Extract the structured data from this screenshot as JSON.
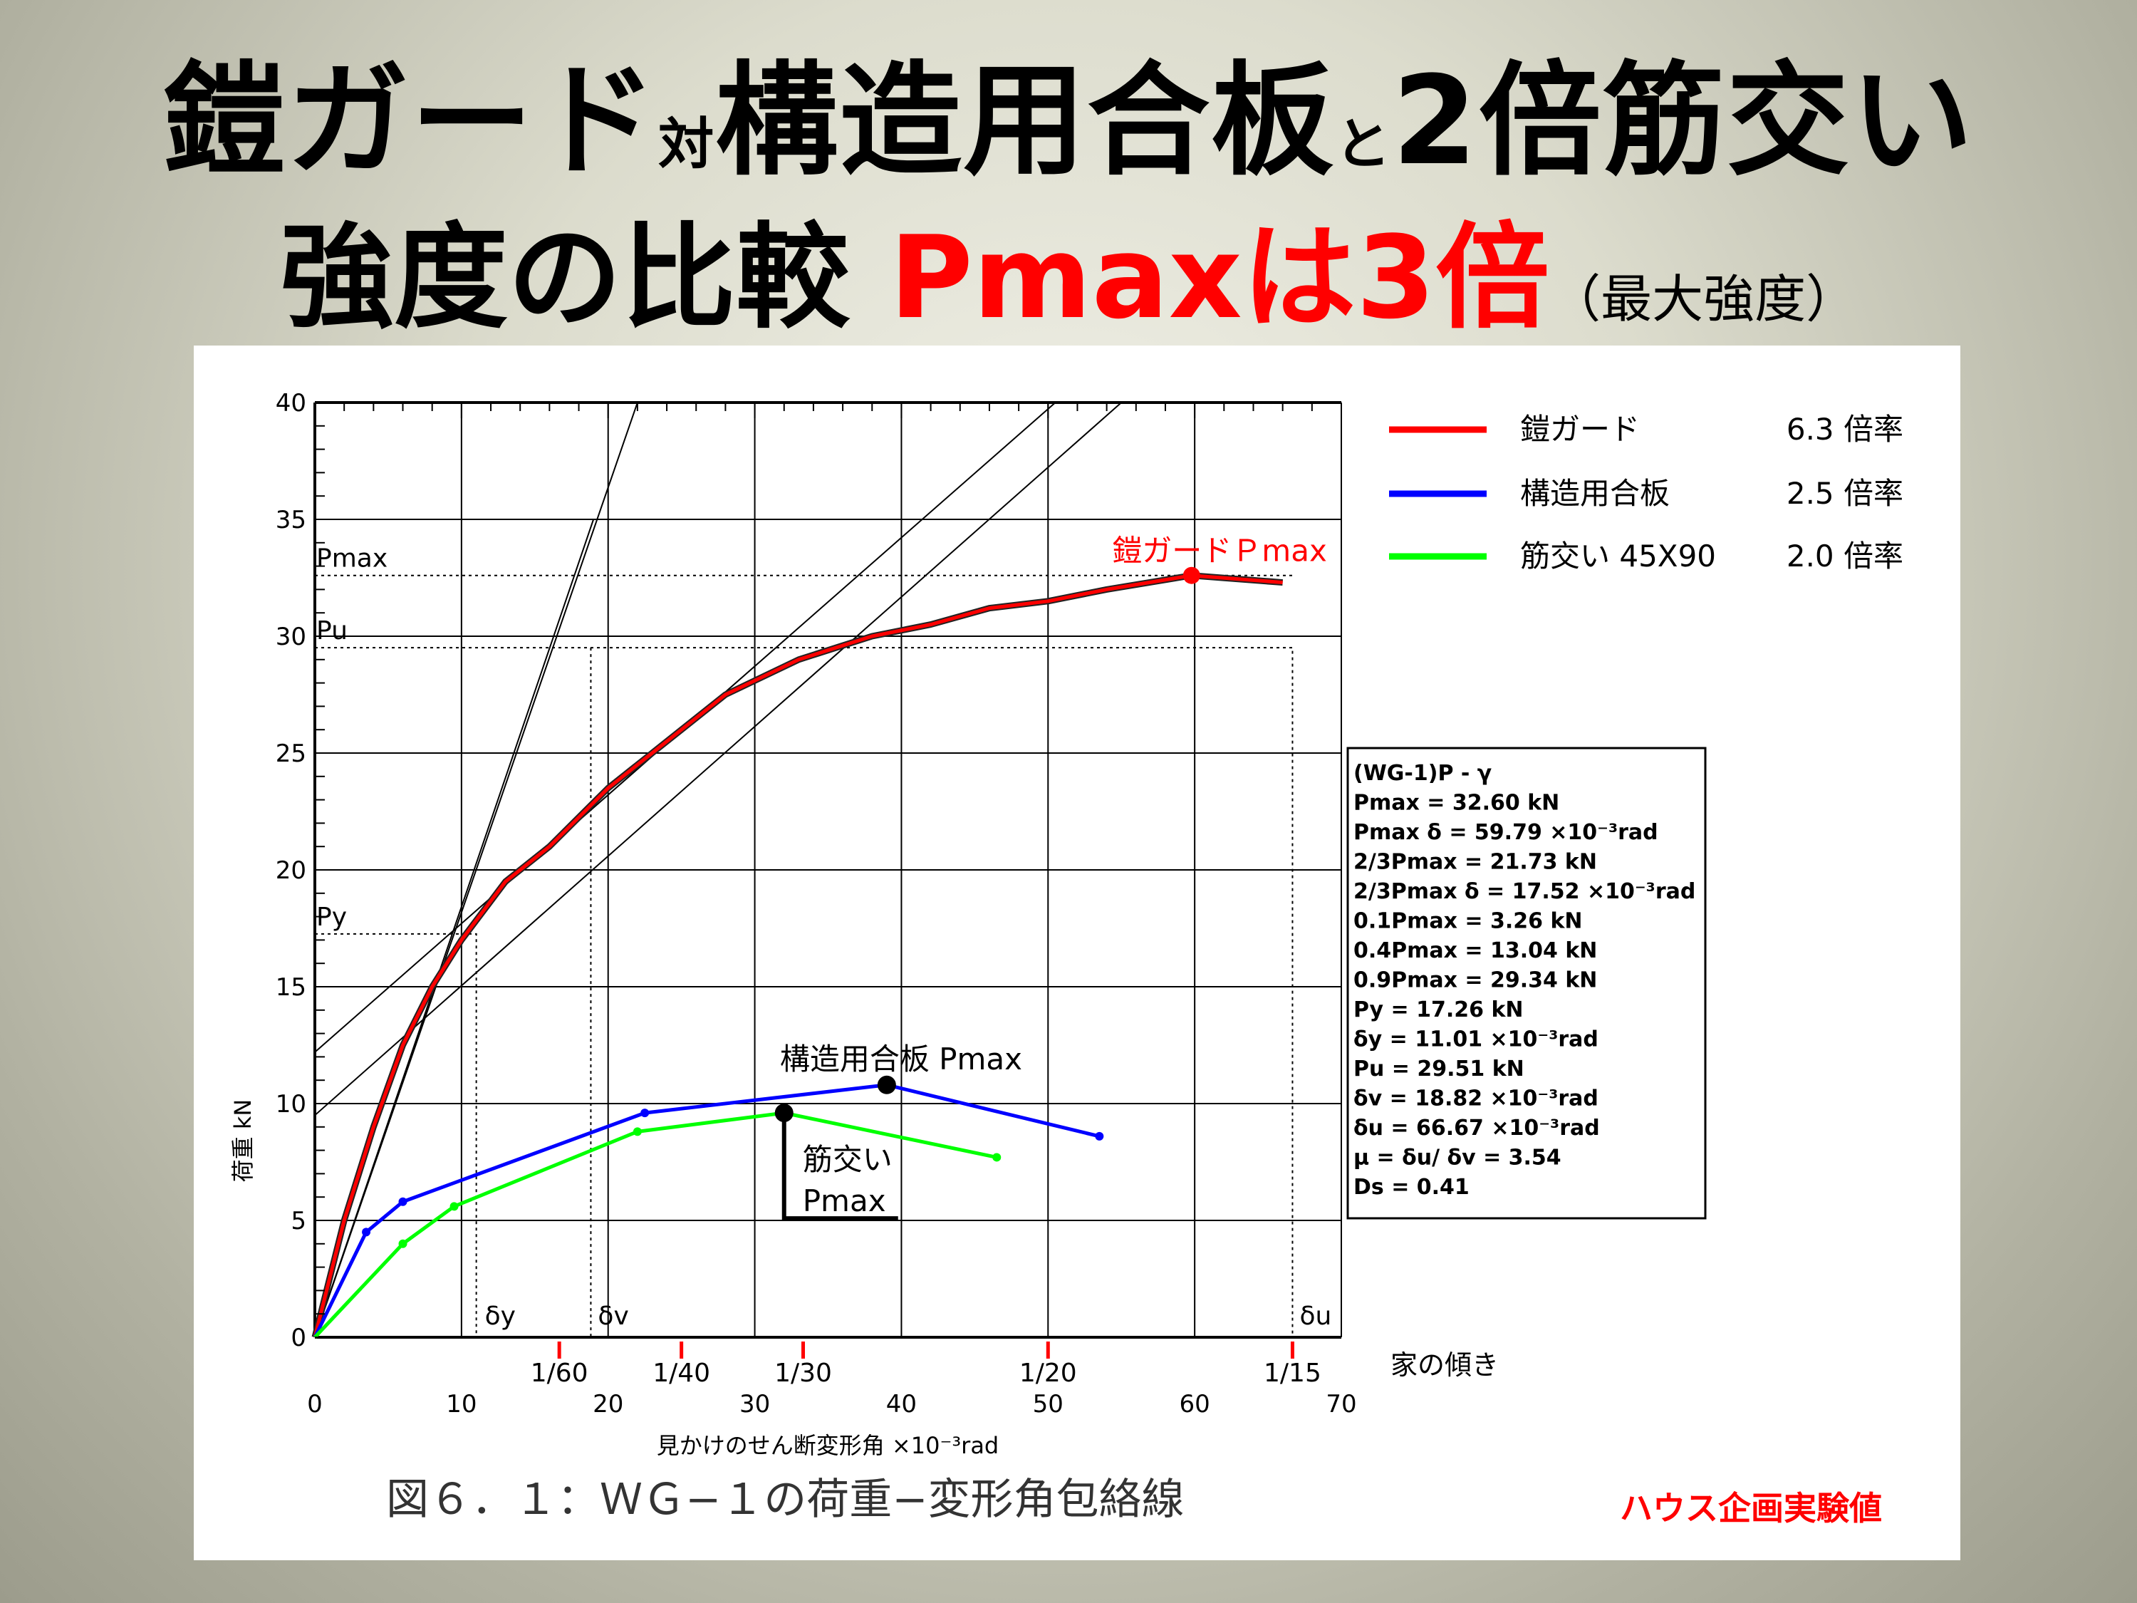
{
  "title": {
    "line1_a": "鎧ガード",
    "line1_b": "対",
    "line1_c": "構造用合板",
    "line1_d": "と",
    "line1_e": "2倍筋交い",
    "line2_a": "強度の比較",
    "line2_b": "Pmaxは3倍",
    "line2_c": "（最大強度）"
  },
  "colors": {
    "red": "#ff0000",
    "blue": "#0000ff",
    "green": "#00ff00",
    "black": "#000000"
  },
  "chart_data": {
    "type": "line",
    "xlabel": "見かけのせん断変形角 ×10⁻³rad",
    "ylabel": "荷重 kN",
    "xlim": [
      0,
      70
    ],
    "ylim": [
      0,
      40
    ],
    "x_ticks": [
      "0",
      "10",
      "20",
      "30",
      "40",
      "50",
      "60",
      "70"
    ],
    "y_ticks": [
      "0",
      "5",
      "10",
      "15",
      "20",
      "25",
      "30",
      "35",
      "40"
    ],
    "grid": true,
    "legend_position": "top-right",
    "house_tilt_label": "家の傾き",
    "house_tilt_ticks": [
      {
        "label": "1/60",
        "x": 16.67
      },
      {
        "label": "1/40",
        "x": 25
      },
      {
        "label": "1/30",
        "x": 33.3
      },
      {
        "label": "1/20",
        "x": 50
      },
      {
        "label": "1/15",
        "x": 66.67
      }
    ],
    "series": [
      {
        "name": "鎧ガード",
        "rate": "6.3 倍率",
        "color": "#ff0000",
        "x": [
          0,
          1,
          2,
          4,
          6,
          8,
          10,
          13,
          16,
          20,
          23,
          28,
          33,
          38,
          42,
          46,
          50,
          54,
          59.79,
          66
        ],
        "y": [
          0,
          2.5,
          5,
          9,
          12.5,
          15,
          17,
          19.5,
          21,
          23.5,
          25,
          27.5,
          29,
          30,
          30.5,
          31.2,
          31.5,
          32,
          32.6,
          32.3
        ]
      },
      {
        "name": "構造用合板",
        "rate": "2.5 倍率",
        "color": "#0000ff",
        "x": [
          0,
          3.5,
          6,
          22.5,
          39,
          53.5
        ],
        "y": [
          0,
          4.5,
          5.8,
          9.6,
          10.8,
          8.6
        ]
      },
      {
        "name": "筋交い 45X90",
        "rate": "2.0 倍率",
        "color": "#00ff00",
        "x": [
          0,
          6,
          9.5,
          22,
          32,
          46.5
        ],
        "y": [
          0,
          4,
          5.6,
          8.8,
          9.6,
          7.7
        ]
      }
    ],
    "ref_lines": {
      "Pmax": 32.6,
      "Pu": 29.51,
      "Py": 17.26,
      "dy": 11.01,
      "dv": 18.82,
      "du": 66.67,
      "labels": {
        "Pmax": "Pmax",
        "Pu": "Pu",
        "Py": "Py",
        "dy": "δy",
        "dv": "δv",
        "du": "δu"
      }
    },
    "diagonals": [
      {
        "from": [
          0,
          0
        ],
        "to": [
          22,
          40
        ]
      },
      {
        "from": [
          0,
          12.2
        ],
        "to": [
          50.5,
          40
        ]
      },
      {
        "from": [
          0,
          9.5
        ],
        "to": [
          55,
          40
        ]
      },
      {
        "from": [
          0,
          0
        ],
        "to": [
          19,
          35
        ]
      }
    ],
    "annotations": [
      {
        "text": "鎧ガードＰmax",
        "x": 59.79,
        "y": 32.6,
        "color": "#ff0000"
      },
      {
        "text": "構造用合板 Pmax",
        "x": 39,
        "y": 10.8,
        "color": "#000000"
      },
      {
        "text_line1": "筋交い",
        "text_line2": "Pmax",
        "x": 32,
        "y": 9.6,
        "color": "#000000"
      }
    ],
    "info_box": [
      "(WG-1)P - γ",
      "Pmax = 32.60  kN",
      "Pmax δ  = 59.79  ×10⁻³rad",
      "2/3Pmax = 21.73  kN",
      "2/3Pmax δ  = 17.52  ×10⁻³rad",
      "0.1Pmax = 3.26  kN",
      "0.4Pmax = 13.04  kN",
      "0.9Pmax = 29.34  kN",
      "Py = 17.26  kN",
      "δy = 11.01 ×10⁻³rad",
      "Pu = 29.51  kN",
      "δv = 18.82 ×10⁻³rad",
      "δu = 66.67 ×10⁻³rad",
      "μ =  δu/  δv = 3.54",
      "Ds =  0.41"
    ],
    "caption": "図６．１：ＷＧ−１の荷重−変形角包絡線",
    "source": "ハウス企画実験値"
  }
}
